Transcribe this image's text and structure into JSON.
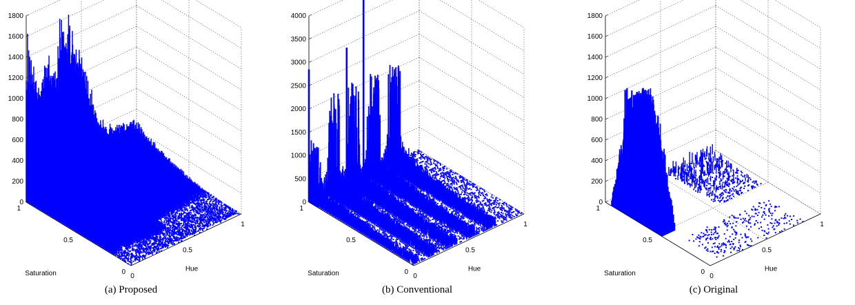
{
  "figure": {
    "bar_color": "#0000ff",
    "panels": [
      {
        "caption": "(a)  Proposed",
        "chart_data": {
          "type": "bar3d",
          "xlabel": "Hue",
          "ylabel": "Saturation",
          "zlabel": "",
          "x_ticks": [
            "0",
            "0.5",
            "1"
          ],
          "y_ticks": [
            "0",
            "0.5",
            "1"
          ],
          "z_ticks": [
            "0",
            "200",
            "400",
            "600",
            "800",
            "1000",
            "1200",
            "1400",
            "1600",
            "1800"
          ],
          "xlim": [
            0,
            1
          ],
          "ylim": [
            0,
            1
          ],
          "zlim": [
            0,
            1800
          ],
          "grid": true,
          "back_wall_profile_sat1": {
            "hue": [
              0.0,
              0.01,
              0.03,
              0.05,
              0.06,
              0.08,
              0.1,
              0.12,
              0.14,
              0.16,
              0.18,
              0.2,
              0.22,
              0.24,
              0.26,
              0.28,
              0.3,
              0.32,
              0.34,
              0.36,
              0.38,
              0.4,
              0.42,
              0.44,
              0.46,
              0.48,
              0.5
            ],
            "count": [
              1680,
              1200,
              1500,
              1000,
              1450,
              900,
              1100,
              850,
              1520,
              1000,
              1550,
              900,
              1150,
              1250,
              1000,
              1200,
              1650,
              1750,
              1300,
              1000,
              1700,
              1300,
              1200,
              1260,
              1100,
              1250,
              600
            ]
          },
          "surface_level_front": 0
        }
      },
      {
        "caption": "(b)  Conventional",
        "chart_data": {
          "type": "bar3d",
          "xlabel": "Hue",
          "ylabel": "Saturation",
          "zlabel": "",
          "x_ticks": [
            "0",
            "0.5",
            "1"
          ],
          "y_ticks": [
            "0",
            "0.5",
            "1"
          ],
          "z_ticks": [
            "0",
            "500",
            "1000",
            "1500",
            "2000",
            "2500",
            "3000",
            "3500",
            "4000"
          ],
          "xlim": [
            0,
            1
          ],
          "ylim": [
            0,
            1
          ],
          "zlim": [
            0,
            4000
          ],
          "grid": true,
          "ridges_hue": [
            0.0,
            0.18,
            0.36,
            0.54,
            0.72
          ],
          "spikes": [
            {
              "hue": 0.0,
              "sat": 1.0,
              "count": 2850
            },
            {
              "hue": 0.2,
              "sat": 0.85,
              "count": 3300
            },
            {
              "hue": 0.4,
              "sat": 0.9,
              "count": 4700
            }
          ]
        }
      },
      {
        "caption": "(c)  Original",
        "chart_data": {
          "type": "bar3d",
          "xlabel": "Hue",
          "ylabel": "Saturation",
          "zlabel": "",
          "x_ticks": [
            "0",
            "0.5",
            "1"
          ],
          "y_ticks": [
            "0",
            "0.5",
            "1"
          ],
          "z_ticks": [
            "0",
            "200",
            "400",
            "600",
            "800",
            "1000",
            "1200",
            "1400",
            "1600",
            "1800"
          ],
          "xlim": [
            0,
            1
          ],
          "ylim": [
            0,
            1
          ],
          "zlim": [
            0,
            1800
          ],
          "grid": true,
          "main_cluster": {
            "hue_range": [
              0.0,
              0.12
            ],
            "sat_range": [
              0.45,
              1.0
            ],
            "peak": 1250
          },
          "secondary_peak": {
            "hue": 0.12,
            "sat": 0.95,
            "count": 1100
          },
          "low_cluster": {
            "hue_range": [
              0.55,
              0.95
            ],
            "sat_range": [
              0.5,
              1.0
            ],
            "peak": 120
          }
        }
      }
    ]
  }
}
